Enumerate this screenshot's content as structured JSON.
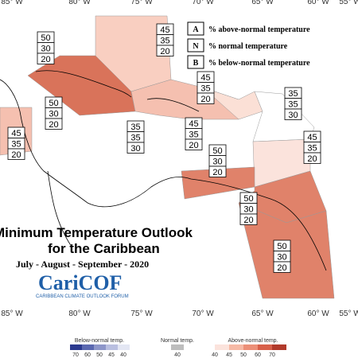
{
  "map": {
    "lon_labels_top": [
      "85° W",
      "80° W",
      "75° W",
      "70° W",
      "65° W",
      "60° W",
      "55° W"
    ],
    "lon_labels_bottom": [
      "85° W",
      "80° W",
      "75° W",
      "70° W",
      "65° W",
      "60° W",
      "55° W"
    ],
    "legend": [
      {
        "key": "A",
        "text": "% above-normal temperature"
      },
      {
        "key": "N",
        "text": "% normal temperature"
      },
      {
        "key": "B",
        "text": "% below-normal temperature"
      }
    ],
    "regions": [
      {
        "values": [
          50,
          30,
          20
        ]
      },
      {
        "values": [
          45,
          35,
          20
        ]
      },
      {
        "values": [
          50,
          30,
          20
        ]
      },
      {
        "values": [
          45,
          35,
          20
        ]
      },
      {
        "values": [
          35,
          35,
          30
        ]
      },
      {
        "values": [
          35,
          35,
          30
        ]
      },
      {
        "values": [
          45,
          35,
          20
        ]
      },
      {
        "values": [
          45,
          35,
          20
        ]
      },
      {
        "values": [
          45,
          35,
          20
        ]
      },
      {
        "values": [
          50,
          30,
          20
        ]
      },
      {
        "values": [
          50,
          30,
          20
        ]
      },
      {
        "values": [
          50,
          30,
          20
        ]
      }
    ],
    "title": "Minimum Temperature Outlook",
    "subtitle": "for the Caribbean",
    "period": "July - August - September - 2020",
    "logo": "CariCOF",
    "logo_sub": "CARIBBEAN CLIMATE OUTLOOK FORUM",
    "colorbar": {
      "below_title": "Below-normal temp.",
      "below_ticks": [
        "70",
        "60",
        "50",
        "45",
        "40"
      ],
      "normal_title": "Normal temp.",
      "normal_ticks": [
        "40"
      ],
      "above_title": "Above-normal temp.",
      "above_ticks": [
        "40",
        "45",
        "50",
        "60",
        "70"
      ]
    }
  }
}
